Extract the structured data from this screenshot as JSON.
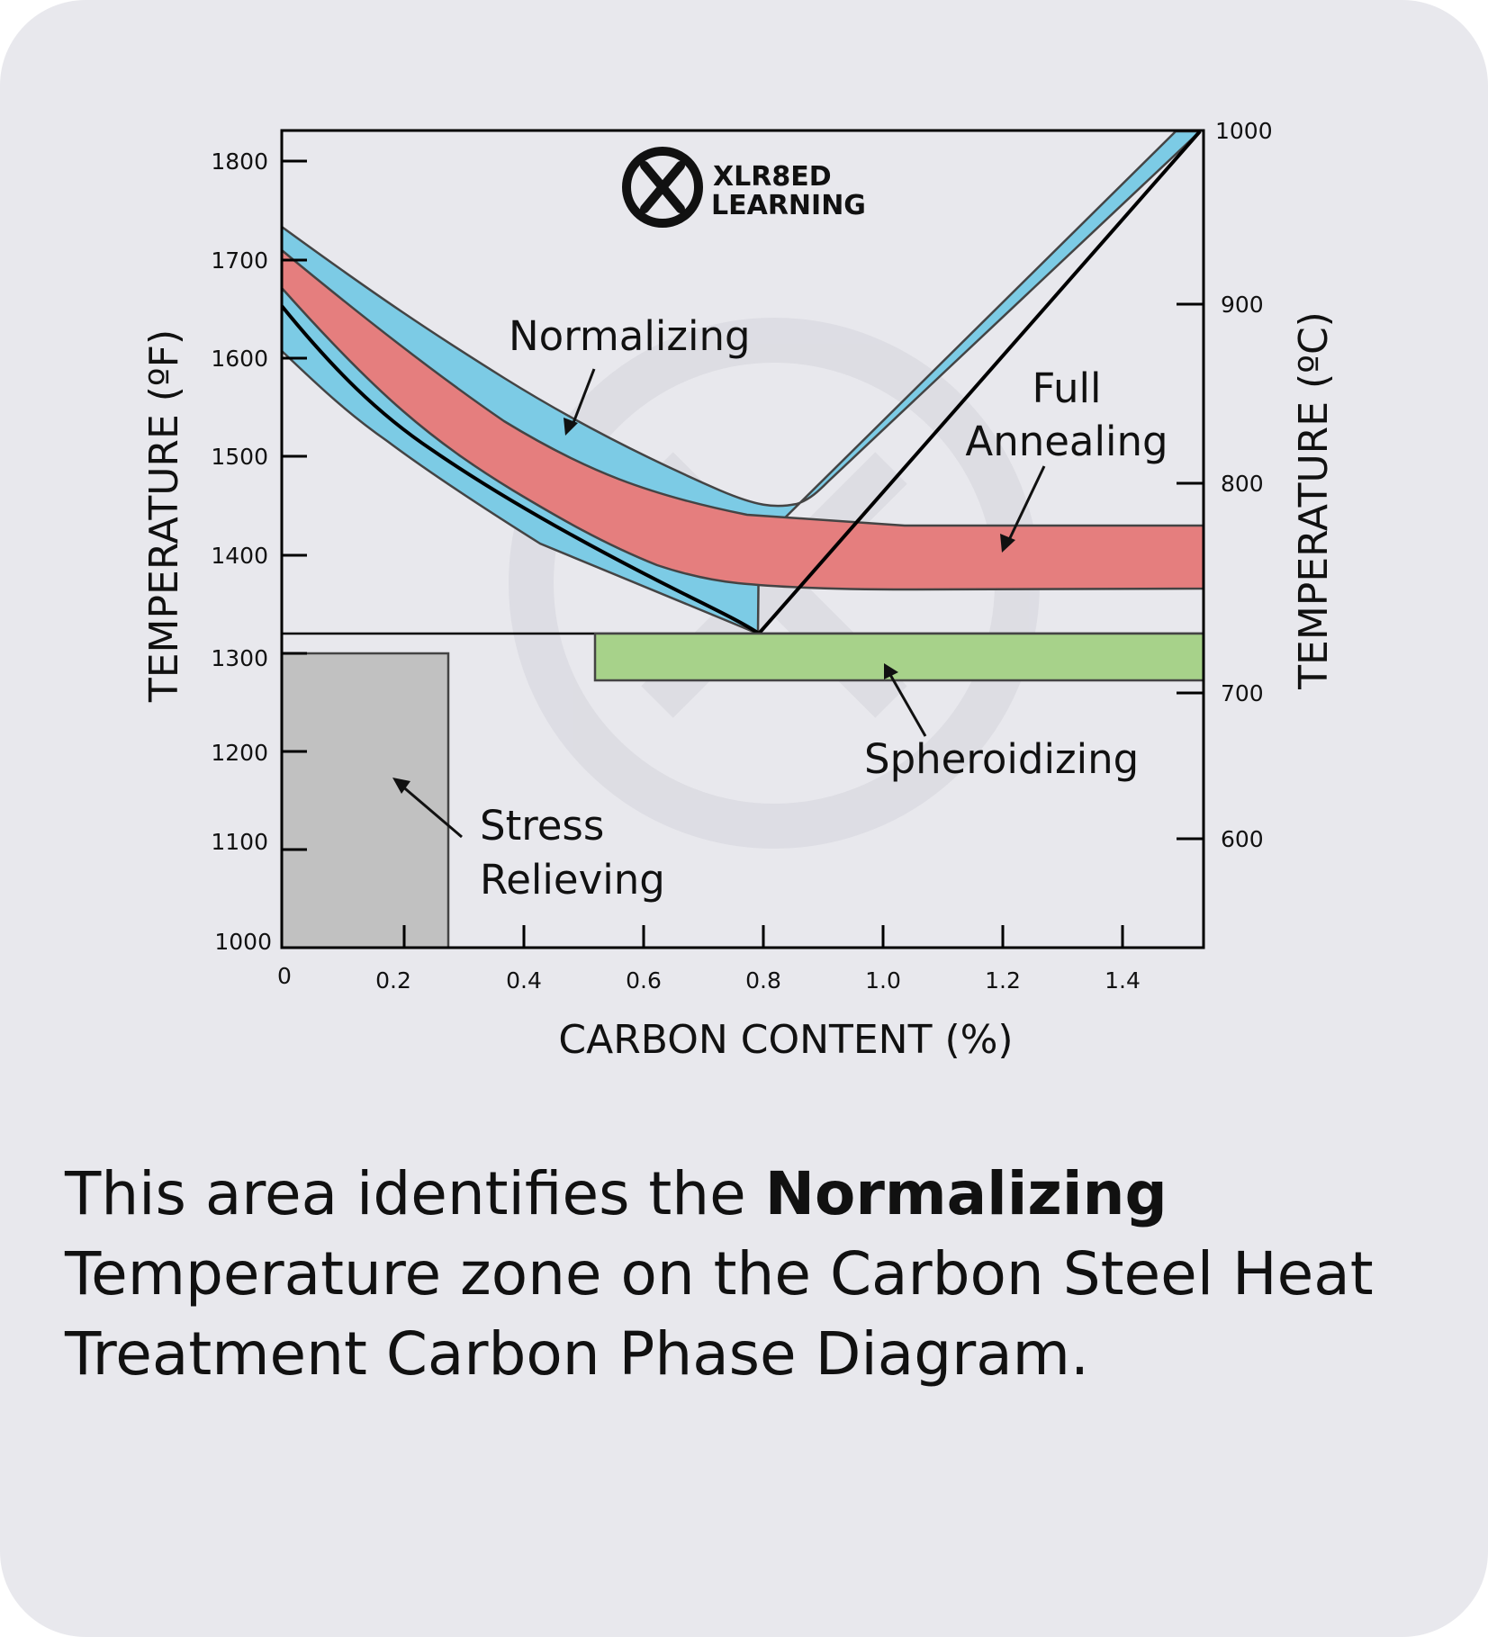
{
  "brand": {
    "line1": "XLR8ED",
    "line2": "LEARNING"
  },
  "axes": {
    "left_label": "TEMPERATURE (ºF)",
    "right_label": "TEMPERATURE (ºC)",
    "bottom_label": "CARBON CONTENT (%)",
    "left_ticks": [
      "1800",
      "1700",
      "1600",
      "1500",
      "1400",
      "1300",
      "1200",
      "1100",
      "1000"
    ],
    "right_ticks": [
      "1000",
      "900",
      "800",
      "700",
      "600"
    ],
    "bottom_ticks": [
      "0",
      "0.2",
      "0.4",
      "0.6",
      "0.8",
      "1.0",
      "1.2",
      "1.4"
    ]
  },
  "labels": {
    "normalizing": "Normalizing",
    "full_annealing_1": "Full",
    "full_annealing_2": "Annealing",
    "spheroidizing": "Spheroidizing",
    "stress_relieving_1": "Stress",
    "stress_relieving_2": "Relieving"
  },
  "colors": {
    "normalizing": "#7ccbe5",
    "full_annealing": "#e57e7e",
    "spheroidizing": "#a7d28a",
    "stress_relieving": "#c1c1c1",
    "background": "#e8e8ed"
  },
  "caption": {
    "before": "This area identifies the ",
    "bold": "Normalizing",
    "after": " Temperature zone on the Carbon Steel Heat Treatment Carbon Phase Diagram."
  }
}
